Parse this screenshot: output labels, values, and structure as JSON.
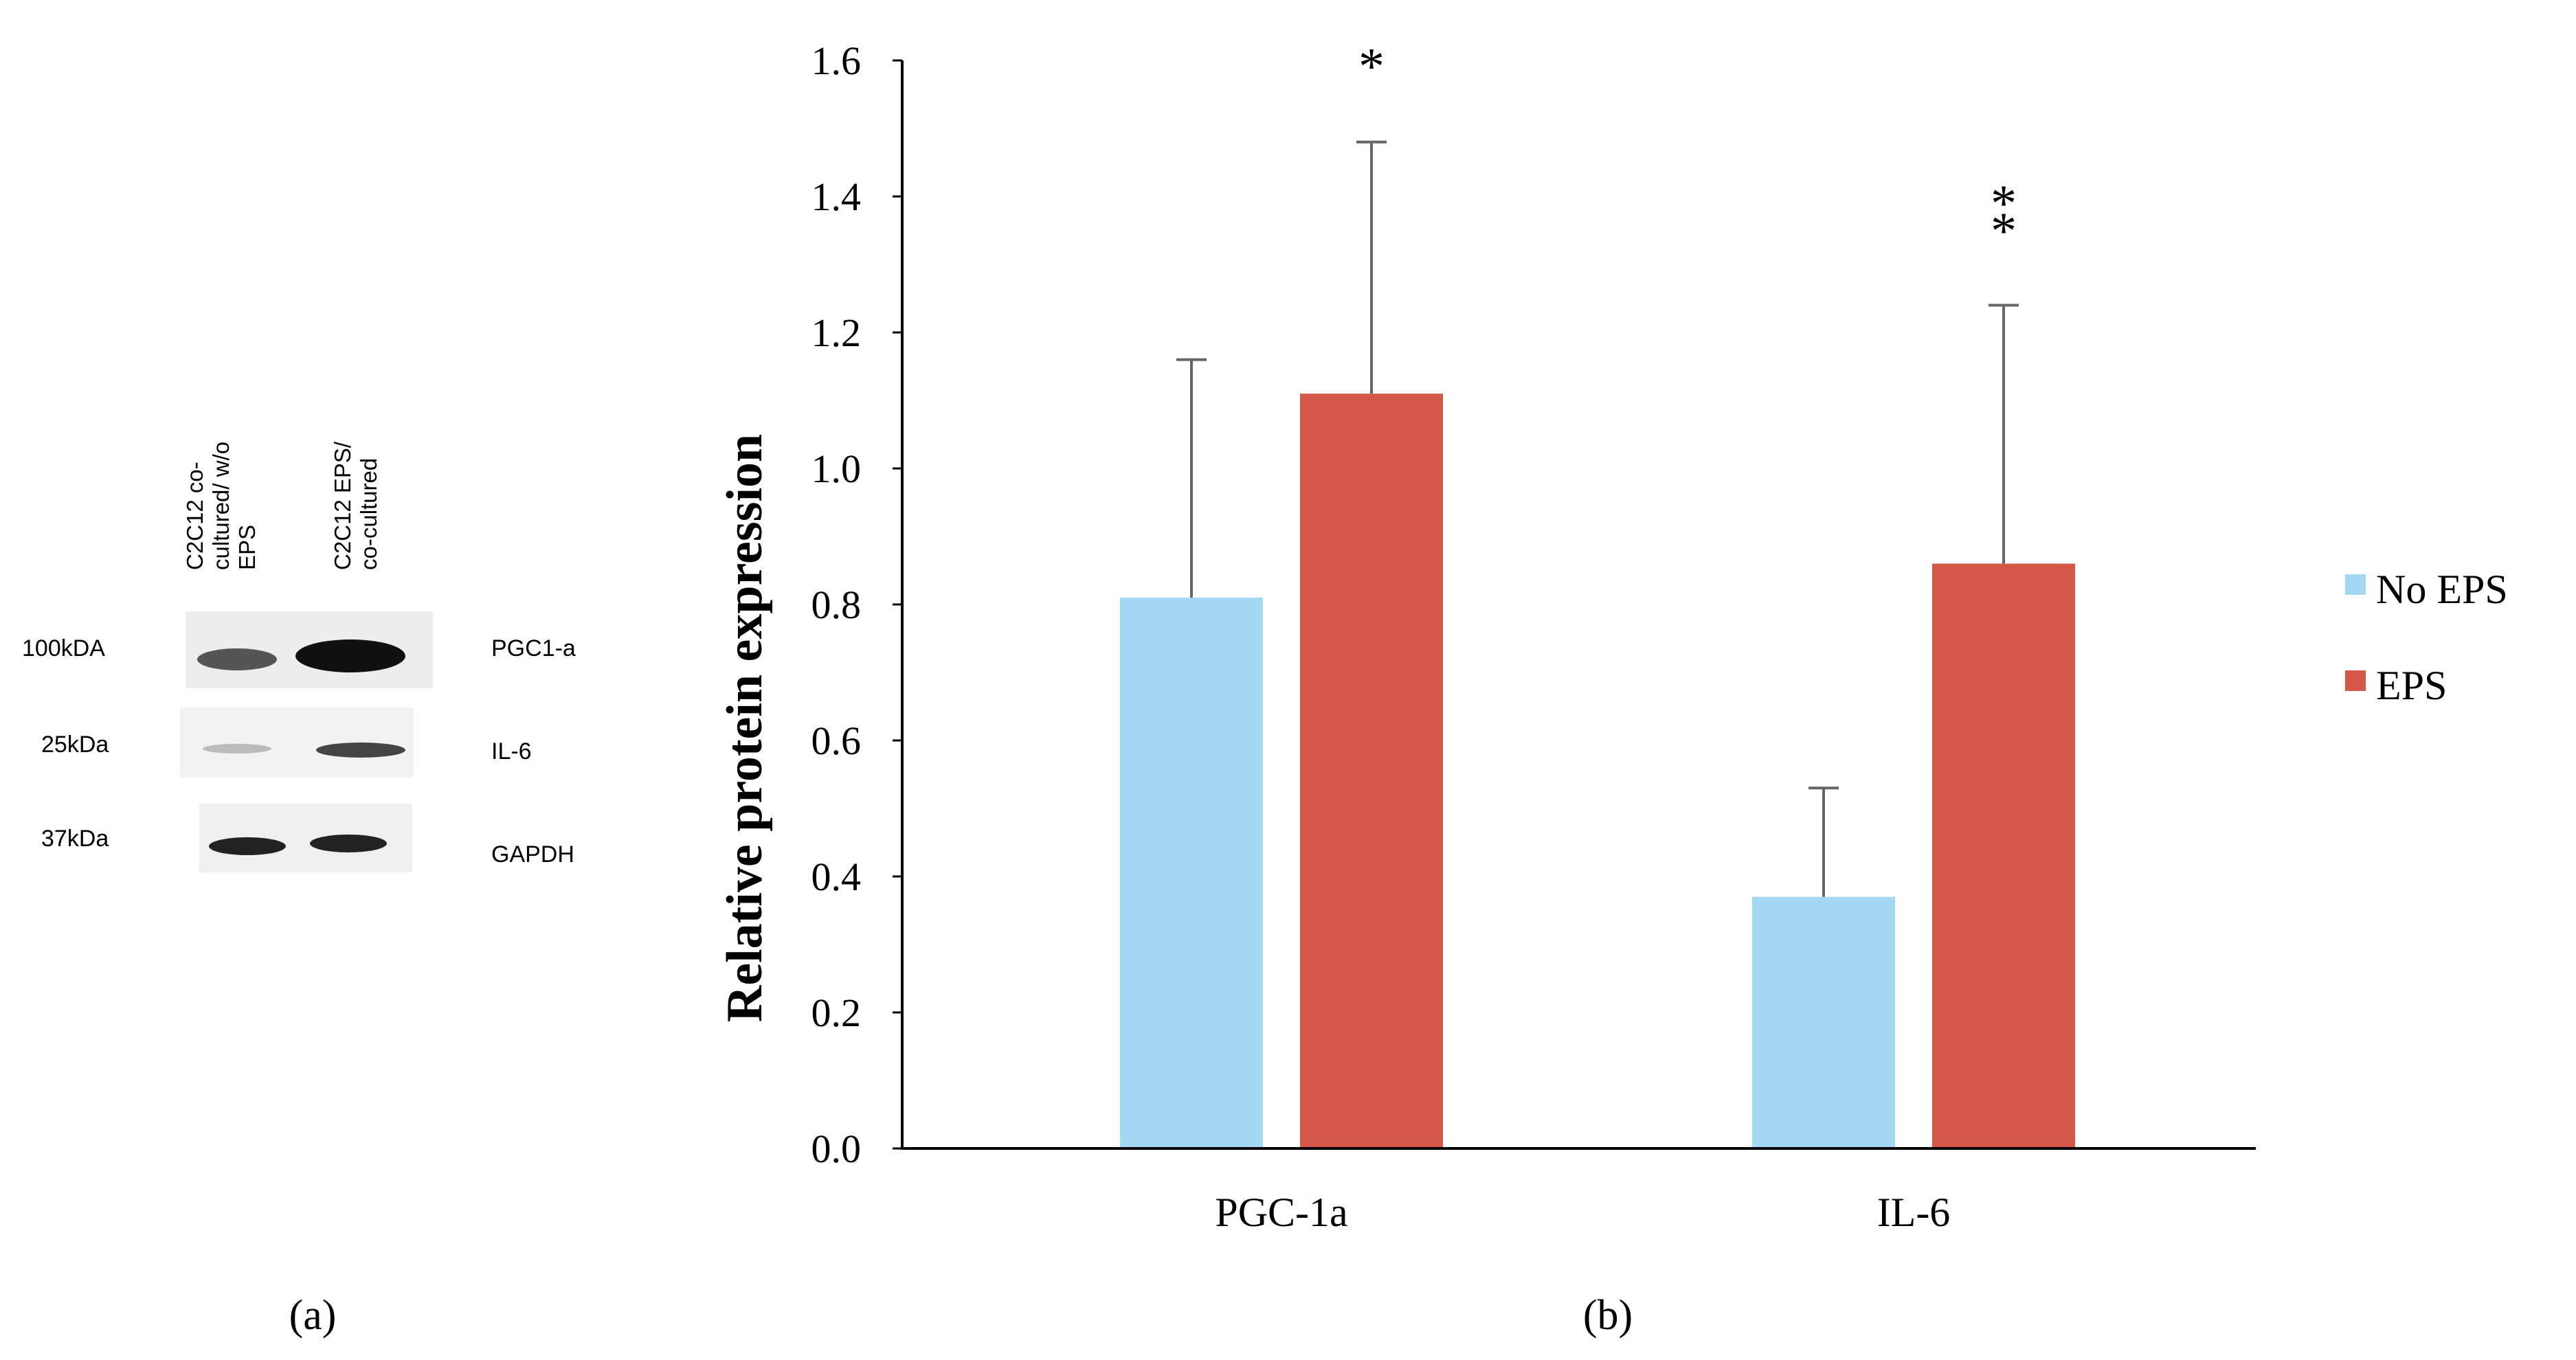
{
  "panel_a": {
    "label": "(a)",
    "lanes": [
      [
        "C2C12 co-",
        "cultured/ w/o",
        "EPS"
      ],
      [
        "C2C12 EPS/",
        "co-cultured"
      ]
    ],
    "rows": [
      {
        "kda": "100kDA",
        "protein": "PGC1-a"
      },
      {
        "kda": "25kDa",
        "protein": "IL-6"
      },
      {
        "kda": "37kDa",
        "protein": "GAPDH"
      }
    ]
  },
  "panel_b": {
    "label": "(b)"
  },
  "colors": {
    "no_eps": "#a5d8f3",
    "eps": "#d4574a",
    "axis": "#000000",
    "error": "#666666"
  },
  "chart_data": {
    "type": "bar",
    "title": "",
    "xlabel": "",
    "ylabel": "Relative protein expression",
    "categories": [
      "PGC-1a",
      "IL-6"
    ],
    "series": [
      {
        "name": "No EPS",
        "values": [
          0.81,
          0.37
        ],
        "errors": [
          0.35,
          0.16
        ]
      },
      {
        "name": "EPS",
        "values": [
          1.11,
          0.86
        ],
        "errors": [
          0.37,
          0.38
        ]
      }
    ],
    "ylim": [
      0,
      1.6
    ],
    "yticks": [
      "0.0",
      "0.2",
      "0.4",
      "0.6",
      "0.8",
      "1.0",
      "1.2",
      "1.4",
      "1.6"
    ],
    "significance": [
      {
        "category": "PGC-1a",
        "series": "EPS",
        "marker": "*"
      },
      {
        "category": "IL-6",
        "series": "EPS",
        "marker": "**"
      }
    ],
    "grid": false,
    "legend": "right"
  }
}
